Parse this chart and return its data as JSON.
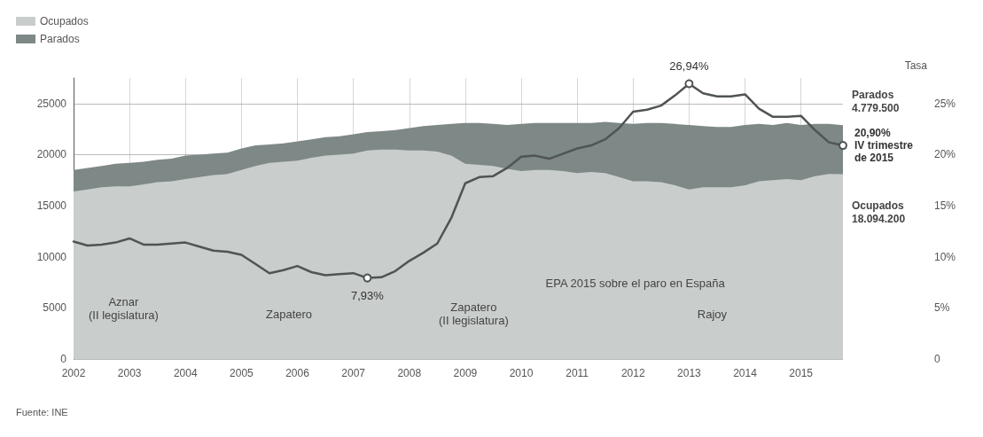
{
  "chart_data": {
    "type": "area",
    "stacked": true,
    "x": [
      2002,
      2002.25,
      2002.5,
      2002.75,
      2003,
      2003.25,
      2003.5,
      2003.75,
      2004,
      2004.25,
      2004.5,
      2004.75,
      2005,
      2005.25,
      2005.5,
      2005.75,
      2006,
      2006.25,
      2006.5,
      2006.75,
      2007,
      2007.25,
      2007.5,
      2007.75,
      2008,
      2008.25,
      2008.5,
      2008.75,
      2009,
      2009.25,
      2009.5,
      2009.75,
      2010,
      2010.25,
      2010.5,
      2010.75,
      2011,
      2011.25,
      2011.5,
      2011.75,
      2012,
      2012.25,
      2012.5,
      2012.75,
      2013,
      2013.25,
      2013.5,
      2013.75,
      2014,
      2014.25,
      2014.5,
      2014.75,
      2015,
      2015.25,
      2015.5,
      2015.75
    ],
    "series": [
      {
        "name": "Ocupados",
        "color": "#c9cdcc",
        "values": [
          16400,
          16600,
          16800,
          16900,
          16900,
          17100,
          17300,
          17400,
          17600,
          17800,
          18000,
          18100,
          18500,
          18900,
          19200,
          19300,
          19400,
          19700,
          19900,
          20000,
          20100,
          20400,
          20500,
          20500,
          20400,
          20400,
          20300,
          19900,
          19100,
          19000,
          18900,
          18600,
          18400,
          18500,
          18500,
          18400,
          18200,
          18300,
          18200,
          17800,
          17400,
          17400,
          17300,
          17000,
          16600,
          16800,
          16800,
          16800,
          17000,
          17400,
          17500,
          17600,
          17500,
          17900,
          18100,
          18094.2
        ]
      },
      {
        "name": "Parados",
        "color": "#7e8886",
        "values": [
          2100,
          2100,
          2100,
          2200,
          2300,
          2200,
          2200,
          2200,
          2300,
          2200,
          2100,
          2100,
          2100,
          2000,
          1800,
          1800,
          1900,
          1800,
          1800,
          1800,
          1900,
          1800,
          1800,
          1900,
          2200,
          2400,
          2600,
          3100,
          4000,
          4100,
          4100,
          4300,
          4600,
          4600,
          4600,
          4700,
          4900,
          4800,
          5000,
          5300,
          5600,
          5700,
          5800,
          6000,
          6300,
          6000,
          5900,
          5900,
          5900,
          5600,
          5400,
          5500,
          5400,
          5100,
          4900,
          4779.5
        ]
      },
      {
        "type": "line",
        "axis": "y2",
        "color": "#505454",
        "values": [
          11.5,
          11.1,
          11.2,
          11.4,
          11.8,
          11.2,
          11.2,
          11.3,
          11.4,
          11,
          10.6,
          10.5,
          10.2,
          9.3,
          8.4,
          8.7,
          9.1,
          8.5,
          8.2,
          8.3,
          8.4,
          7.93,
          8,
          8.6,
          9.6,
          10.4,
          11.3,
          13.8,
          17.2,
          17.8,
          17.9,
          18.7,
          19.8,
          19.9,
          19.6,
          20.1,
          20.6,
          20.9,
          21.5,
          22.6,
          24.2,
          24.4,
          24.8,
          25.8,
          26.94,
          26,
          25.7,
          25.7,
          25.9,
          24.5,
          23.7,
          23.7,
          23.8,
          22.4,
          21.2,
          20.9
        ],
        "value_labels": [
          null,
          null,
          null,
          null,
          null,
          null,
          null,
          null,
          null,
          null,
          null,
          null,
          null,
          null,
          null,
          null,
          null,
          null,
          null,
          null,
          null,
          "7,93%",
          null,
          null,
          null,
          null,
          null,
          null,
          null,
          null,
          null,
          null,
          null,
          null,
          null,
          null,
          null,
          null,
          null,
          null,
          null,
          null,
          null,
          null,
          "26,94%",
          null,
          null,
          null,
          null,
          null,
          null,
          null,
          null,
          null,
          null,
          "20,90%\nIV trimestre\nde 2015"
        ]
      }
    ],
    "xlim": [
      2002,
      2015.75
    ],
    "xticks": [
      2002,
      2003,
      2004,
      2005,
      2006,
      2007,
      2008,
      2009,
      2010,
      2011,
      2012,
      2013,
      2014,
      2015
    ],
    "ylim": [
      0,
      27500
    ],
    "yticks": [
      0,
      5000,
      10000,
      15000,
      20000,
      25000
    ],
    "y2lim": [
      0,
      27.5
    ],
    "y2ticks": [
      0,
      {
        "value": 5,
        "label": "5%"
      },
      {
        "value": 10,
        "label": "10%"
      },
      {
        "value": 15,
        "label": "15%"
      },
      {
        "value": 20,
        "label": "20%"
      },
      {
        "value": 25,
        "label": "25%"
      }
    ],
    "y2label": "Tasa",
    "grid": true,
    "legend": "top left",
    "annotations": [
      "Aznar\n(II legislatura)",
      "Zapatero",
      "Zapatero\n(II legislatura)",
      "Rajoy",
      "EPA 2015 sobre el paro en España",
      {
        "text": "Parados\n4.779.500",
        "x": 2015.75,
        "y": 22873.7
      },
      {
        "text": "Ocupados\n18.094.200",
        "x": 2015.75,
        "y": 18094.2
      },
      "Fuente: INE"
    ]
  }
}
